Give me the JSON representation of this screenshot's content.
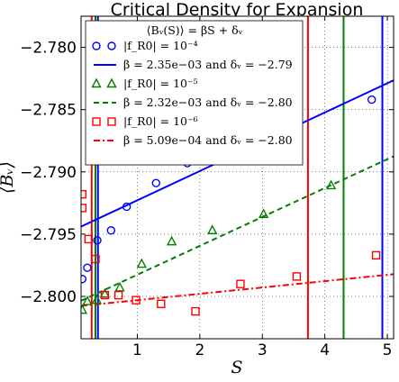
{
  "chart_data": {
    "type": "scatter",
    "title": "Critical Density for Expansion",
    "xlabel": "S",
    "ylabel": "⟨Bᵥ⟩",
    "xlim": [
      0.1,
      5.1
    ],
    "ylim": [
      -2.8034,
      -2.7775
    ],
    "xticks": [
      1,
      2,
      3,
      4,
      5
    ],
    "xtick_labels": [
      "1",
      "2",
      "3",
      "4",
      "5"
    ],
    "yticks": [
      -2.78,
      -2.785,
      -2.79,
      -2.795,
      -2.8
    ],
    "ytick_labels": [
      "−2.780",
      "−2.785",
      "−2.790",
      "−2.795",
      "−2.800"
    ],
    "grid": true,
    "legend_placement": "top-left",
    "legend_title": "⟨Bᵥ(S)⟩ = βS + δᵥ",
    "series": [
      {
        "name": "|f_R0| = 10⁻⁴",
        "marker": "circle",
        "color": "#0000ff",
        "points": [
          [
            0.12,
            -2.7986
          ],
          [
            0.2,
            -2.7977
          ],
          [
            0.36,
            -2.7955
          ],
          [
            0.58,
            -2.7947
          ],
          [
            0.83,
            -2.7928
          ],
          [
            1.3,
            -2.7909
          ],
          [
            1.8,
            -2.7893
          ],
          [
            2.55,
            -2.7875
          ],
          [
            3.5,
            -2.7864
          ],
          [
            4.75,
            -2.7842
          ]
        ],
        "fit_name": "β = 2.35e−03 and δᵥ = −2.79",
        "fit": {
          "slope": 0.00235,
          "intercept": -2.79463
        },
        "fit_style": "solid"
      },
      {
        "name": "|f_R0| = 10⁻⁵",
        "marker": "triangle",
        "color": "#007f00",
        "points": [
          [
            0.12,
            -2.8011
          ],
          [
            0.2,
            -2.8004
          ],
          [
            0.35,
            -2.8003
          ],
          [
            0.48,
            -2.7998
          ],
          [
            0.72,
            -2.7993
          ],
          [
            1.07,
            -2.7974
          ],
          [
            1.55,
            -2.7956
          ],
          [
            2.2,
            -2.7947
          ],
          [
            3.02,
            -2.7934
          ],
          [
            4.1,
            -2.7911
          ]
        ],
        "fit_name": "β = 2.32e−03 and δᵥ = −2.80",
        "fit": {
          "slope": 0.00232,
          "intercept": -2.80058
        },
        "fit_style": "dashed"
      },
      {
        "name": "|f_R0| = 10⁻⁶",
        "marker": "square",
        "color": "#ff0000",
        "points": [
          [
            0.12,
            -2.7918
          ],
          [
            0.12,
            -2.7929
          ],
          [
            0.22,
            -2.7954
          ],
          [
            0.33,
            -2.797
          ],
          [
            0.48,
            -2.7999
          ],
          [
            0.7,
            -2.7999
          ],
          [
            0.98,
            -2.8003
          ],
          [
            1.38,
            -2.8006
          ],
          [
            1.93,
            -2.8012
          ],
          [
            2.65,
            -2.799
          ],
          [
            3.55,
            -2.7984
          ],
          [
            4.82,
            -2.7967
          ]
        ],
        "fit_name": "β = 5.09e−04 and δᵥ = −2.80",
        "fit": {
          "slope": 0.000509,
          "intercept": -2.80081
        },
        "fit_style": "dashdot"
      }
    ],
    "vertical_lines": [
      {
        "x": 0.27,
        "color": "#ff0000"
      },
      {
        "x": 0.33,
        "color": "#007f00"
      },
      {
        "x": 0.37,
        "color": "#0000ff"
      },
      {
        "x": 3.73,
        "color": "#ff0000"
      },
      {
        "x": 4.3,
        "color": "#007f00"
      },
      {
        "x": 4.92,
        "color": "#0000ff"
      }
    ]
  }
}
